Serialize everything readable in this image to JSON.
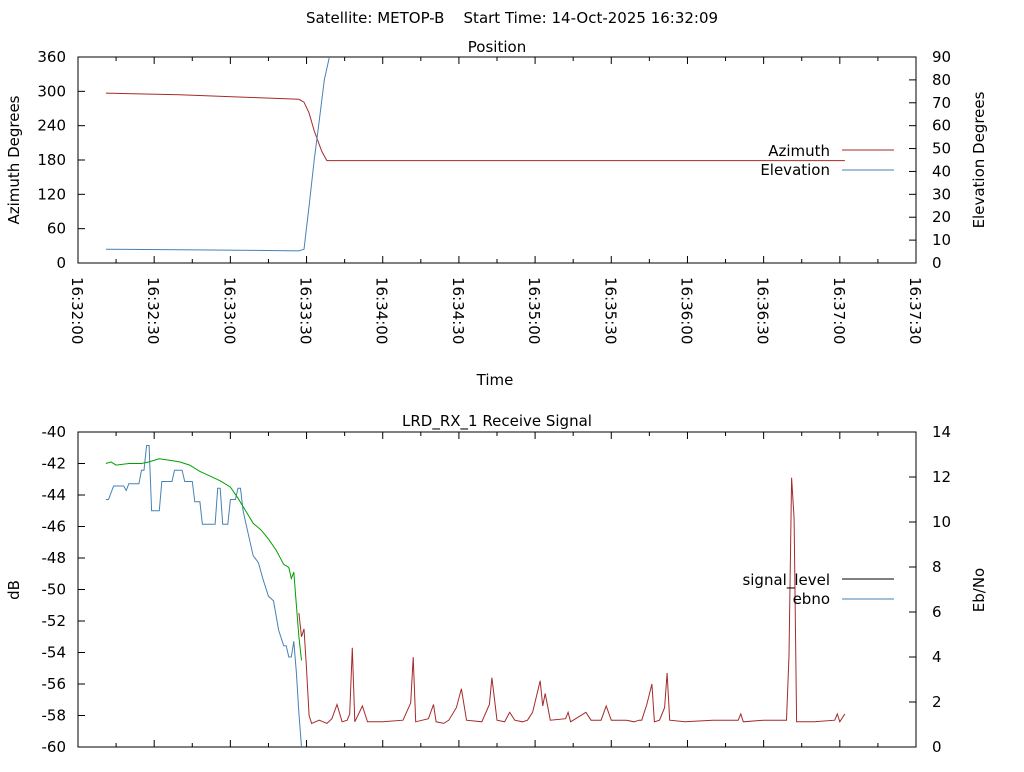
{
  "header": {
    "title": "Satellite: METOP-B    Start Time: 14-Oct-2025 16:32:09"
  },
  "chart_data": [
    {
      "type": "line",
      "title": "Position",
      "xlabel": "Time",
      "ylabel": "Azimuth Degrees",
      "y2label": "Elevation Degrees",
      "xlim": [
        "16:32:00",
        "16:37:30"
      ],
      "ylim": [
        0,
        360
      ],
      "y2lim": [
        0,
        90
      ],
      "x_ticks": [
        "16:32:00",
        "16:32:30",
        "16:33:00",
        "16:33:30",
        "16:34:00",
        "16:34:30",
        "16:35:00",
        "16:35:30",
        "16:36:00",
        "16:36:30",
        "16:37:00",
        "16:37:30"
      ],
      "y_ticks": [
        "0",
        "60",
        "120",
        "180",
        "240",
        "300",
        "360"
      ],
      "y2_ticks": [
        "0",
        "10",
        "20",
        "30",
        "40",
        "50",
        "60",
        "70",
        "80",
        "90"
      ],
      "grid": false,
      "legend": "right",
      "series": [
        {
          "name": "Azimuth",
          "axis": "y",
          "color": "#a52a2a",
          "points": [
            [
              "16:32:11",
              297
            ],
            [
              "16:32:40",
              294
            ],
            [
              "16:33:10",
              289
            ],
            [
              "16:33:27",
              286
            ],
            [
              "16:33:29",
              281
            ],
            [
              "16:33:31",
              262
            ],
            [
              "16:33:33",
              231
            ],
            [
              "16:33:36",
              195
            ],
            [
              "16:33:38",
              179
            ],
            [
              "16:34:30",
              179
            ],
            [
              "16:35:30",
              179
            ],
            [
              "16:36:30",
              179
            ],
            [
              "16:37:02",
              179
            ]
          ]
        },
        {
          "name": "Elevation",
          "axis": "y2",
          "color": "#4682b4",
          "points": [
            [
              "16:32:11",
              6
            ],
            [
              "16:32:40",
              5.8
            ],
            [
              "16:33:10",
              5.5
            ],
            [
              "16:33:27",
              5.3
            ],
            [
              "16:33:29",
              6
            ],
            [
              "16:33:31",
              25
            ],
            [
              "16:33:33",
              45
            ],
            [
              "16:33:35",
              62
            ],
            [
              "16:33:37",
              80
            ],
            [
              "16:33:39",
              90
            ]
          ]
        }
      ]
    },
    {
      "type": "line",
      "title": "LRD_RX_1 Receive Signal",
      "xlabel": "",
      "ylabel": "dB",
      "y2label": "Eb/No",
      "xlim": [
        "16:32:00",
        "16:37:30"
      ],
      "ylim": [
        -60,
        -40
      ],
      "y2lim": [
        0,
        14
      ],
      "y_ticks": [
        "-60",
        "-58",
        "-56",
        "-54",
        "-52",
        "-50",
        "-48",
        "-46",
        "-44",
        "-42",
        "-40"
      ],
      "y2_ticks": [
        "0",
        "2",
        "4",
        "6",
        "8",
        "10",
        "12",
        "14"
      ],
      "grid": false,
      "legend": "right",
      "series": [
        {
          "name": "signal_level",
          "axis": "y",
          "color": "#a52a2a",
          "points": [
            [
              "16:33:27",
              -51.5
            ],
            [
              "16:33:28",
              -53
            ],
            [
              "16:33:29",
              -52.5
            ],
            [
              "16:33:30",
              -55
            ],
            [
              "16:33:31",
              -58
            ],
            [
              "16:33:32",
              -58.5
            ],
            [
              "16:33:35",
              -58.3
            ],
            [
              "16:33:38",
              -58.5
            ],
            [
              "16:33:40",
              -58.2
            ],
            [
              "16:33:42",
              -57.3
            ],
            [
              "16:33:44",
              -58.4
            ],
            [
              "16:33:46",
              -58.3
            ],
            [
              "16:33:47",
              -57.9
            ],
            [
              "16:33:48",
              -53.7
            ],
            [
              "16:33:49",
              -58.4
            ],
            [
              "16:33:52",
              -57.4
            ],
            [
              "16:33:54",
              -58.4
            ],
            [
              "16:34:00",
              -58.4
            ],
            [
              "16:34:08",
              -58.3
            ],
            [
              "16:34:11",
              -57.2
            ],
            [
              "16:34:12",
              -54.3
            ],
            [
              "16:34:13",
              -58.4
            ],
            [
              "16:34:18",
              -58.2
            ],
            [
              "16:34:20",
              -57.3
            ],
            [
              "16:34:21",
              -58.4
            ],
            [
              "16:34:24",
              -58.5
            ],
            [
              "16:34:26",
              -58.3
            ],
            [
              "16:34:29",
              -57.5
            ],
            [
              "16:34:31",
              -56.3
            ],
            [
              "16:34:33",
              -58.3
            ],
            [
              "16:34:39",
              -58.4
            ],
            [
              "16:34:42",
              -57.3
            ],
            [
              "16:34:43",
              -55.6
            ],
            [
              "16:34:45",
              -58.3
            ],
            [
              "16:34:48",
              -58.4
            ],
            [
              "16:34:50",
              -57.8
            ],
            [
              "16:34:52",
              -58.3
            ],
            [
              "16:34:55",
              -58.4
            ],
            [
              "16:34:57",
              -58.3
            ],
            [
              "16:34:59",
              -57.8
            ],
            [
              "16:35:02",
              -55.8
            ],
            [
              "16:35:03",
              -57.4
            ],
            [
              "16:35:04",
              -56.6
            ],
            [
              "16:35:06",
              -58.3
            ],
            [
              "16:35:12",
              -58.2
            ],
            [
              "16:35:13",
              -57.8
            ],
            [
              "16:35:14",
              -58.4
            ],
            [
              "16:35:20",
              -57.8
            ],
            [
              "16:35:22",
              -58.3
            ],
            [
              "16:35:26",
              -58.3
            ],
            [
              "16:35:28",
              -57.4
            ],
            [
              "16:35:30",
              -58.3
            ],
            [
              "16:35:36",
              -58.3
            ],
            [
              "16:35:39",
              -58.4
            ],
            [
              "16:35:41",
              -58.3
            ],
            [
              "16:35:42",
              -58.3
            ],
            [
              "16:35:44",
              -57.3
            ],
            [
              "16:35:46",
              -56.0
            ],
            [
              "16:35:47",
              -58.4
            ],
            [
              "16:35:49",
              -58.3
            ],
            [
              "16:35:51",
              -57.5
            ],
            [
              "16:35:52",
              -55.3
            ],
            [
              "16:35:53",
              -58.3
            ],
            [
              "16:35:59",
              -58.4
            ],
            [
              "16:36:10",
              -58.3
            ],
            [
              "16:36:20",
              -58.3
            ],
            [
              "16:36:21",
              -57.9
            ],
            [
              "16:36:22",
              -58.4
            ],
            [
              "16:36:30",
              -58.3
            ],
            [
              "16:36:39",
              -58.3
            ],
            [
              "16:36:40",
              -54.2
            ],
            [
              "16:36:41",
              -42.9
            ],
            [
              "16:36:42",
              -45.5
            ],
            [
              "16:36:43",
              -58.4
            ],
            [
              "16:36:50",
              -58.4
            ],
            [
              "16:36:58",
              -58.3
            ],
            [
              "16:36:59",
              -57.9
            ],
            [
              "16:37:00",
              -58.4
            ],
            [
              "16:37:02",
              -57.9
            ]
          ]
        },
        {
          "name": "ebno",
          "axis": "y2",
          "color": "#4682b4",
          "points": [
            [
              "16:32:11",
              11.0
            ],
            [
              "16:32:12",
              11.0
            ],
            [
              "16:32:14",
              11.6
            ],
            [
              "16:32:18",
              11.6
            ],
            [
              "16:32:19",
              11.4
            ],
            [
              "16:32:20",
              11.7
            ],
            [
              "16:32:24",
              11.7
            ],
            [
              "16:32:25",
              12.3
            ],
            [
              "16:32:26",
              12.3
            ],
            [
              "16:32:27",
              13.4
            ],
            [
              "16:32:28",
              13.4
            ],
            [
              "16:32:29",
              10.5
            ],
            [
              "16:32:32",
              10.5
            ],
            [
              "16:32:33",
              11.8
            ],
            [
              "16:32:37",
              11.8
            ],
            [
              "16:32:38",
              12.3
            ],
            [
              "16:32:41",
              12.3
            ],
            [
              "16:32:42",
              11.8
            ],
            [
              "16:32:45",
              11.8
            ],
            [
              "16:32:46",
              10.9
            ],
            [
              "16:32:48",
              10.9
            ],
            [
              "16:32:49",
              9.9
            ],
            [
              "16:32:54",
              9.9
            ],
            [
              "16:32:55",
              11.5
            ],
            [
              "16:32:56",
              11.5
            ],
            [
              "16:32:57",
              9.9
            ],
            [
              "16:32:59",
              9.9
            ],
            [
              "16:33:00",
              11.0
            ],
            [
              "16:33:02",
              11.0
            ],
            [
              "16:33:03",
              11.5
            ],
            [
              "16:33:04",
              11.5
            ],
            [
              "16:33:05",
              10.5
            ],
            [
              "16:33:07",
              9.5
            ],
            [
              "16:33:09",
              8.5
            ],
            [
              "16:33:11",
              8.2
            ],
            [
              "16:33:13",
              7.4
            ],
            [
              "16:33:15",
              6.7
            ],
            [
              "16:33:17",
              6.5
            ],
            [
              "16:33:19",
              5.2
            ],
            [
              "16:33:21",
              4.5
            ],
            [
              "16:33:22",
              4.5
            ],
            [
              "16:33:23",
              4.0
            ],
            [
              "16:33:24",
              4.0
            ],
            [
              "16:33:25",
              4.7
            ],
            [
              "16:33:26",
              3.3
            ],
            [
              "16:33:27",
              1.5
            ],
            [
              "16:33:28",
              0
            ]
          ]
        },
        {
          "name": "",
          "axis": "y",
          "color": "#00a000",
          "points": [
            [
              "16:32:11",
              -42.0
            ],
            [
              "16:32:13",
              -41.9
            ],
            [
              "16:32:15",
              -42.1
            ],
            [
              "16:32:20",
              -42.0
            ],
            [
              "16:32:25",
              -42.0
            ],
            [
              "16:32:28",
              -41.9
            ],
            [
              "16:32:32",
              -41.7
            ],
            [
              "16:32:36",
              -41.8
            ],
            [
              "16:32:40",
              -41.9
            ],
            [
              "16:32:44",
              -42.1
            ],
            [
              "16:32:48",
              -42.5
            ],
            [
              "16:32:52",
              -42.8
            ],
            [
              "16:32:56",
              -43.1
            ],
            [
              "16:33:00",
              -43.5
            ],
            [
              "16:33:03",
              -44.2
            ],
            [
              "16:33:06",
              -45.0
            ],
            [
              "16:33:09",
              -45.8
            ],
            [
              "16:33:12",
              -46.2
            ],
            [
              "16:33:15",
              -46.8
            ],
            [
              "16:33:18",
              -47.5
            ],
            [
              "16:33:21",
              -48.4
            ],
            [
              "16:33:23",
              -48.6
            ],
            [
              "16:33:24",
              -49.3
            ],
            [
              "16:33:25",
              -48.9
            ],
            [
              "16:33:26",
              -51.0
            ],
            [
              "16:33:27",
              -53.0
            ],
            [
              "16:33:28",
              -54.5
            ]
          ]
        }
      ]
    }
  ]
}
